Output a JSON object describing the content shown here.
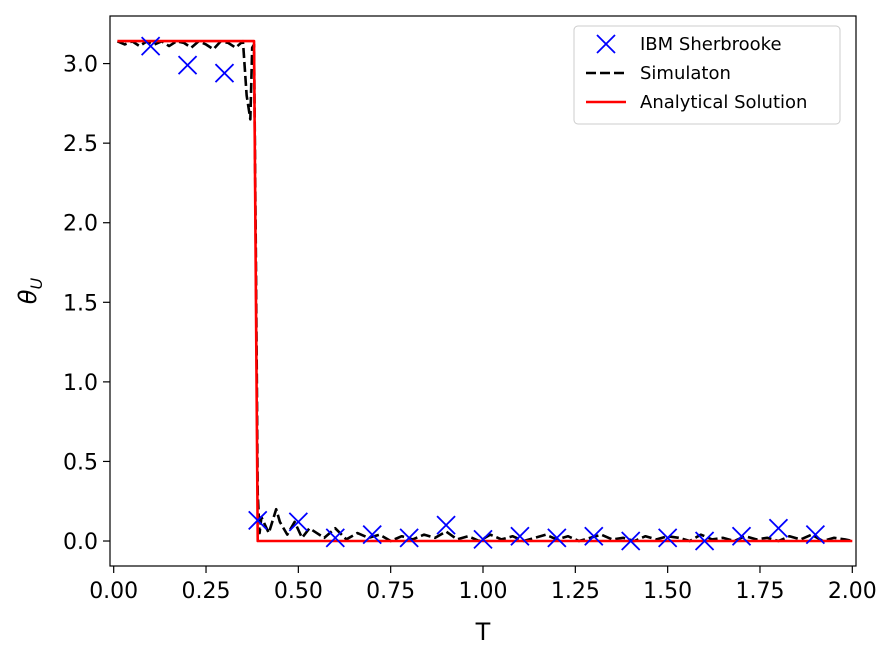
{
  "chart_data": {
    "type": "line",
    "xlabel": "T",
    "ylabel_base": "θ",
    "ylabel_sub": "U",
    "xlim": [
      -0.01,
      2.01
    ],
    "ylim": [
      -0.157,
      3.299
    ],
    "xticks": [
      0.0,
      0.25,
      0.5,
      0.75,
      1.0,
      1.25,
      1.5,
      1.75,
      2.0
    ],
    "xtick_labels": [
      "0.00",
      "0.25",
      "0.50",
      "0.75",
      "1.00",
      "1.25",
      "1.50",
      "1.75",
      "2.00"
    ],
    "yticks": [
      0.0,
      0.5,
      1.0,
      1.5,
      2.0,
      2.5,
      3.0
    ],
    "ytick_labels": [
      "0.0",
      "0.5",
      "1.0",
      "1.5",
      "2.0",
      "2.5",
      "3.0"
    ],
    "grid": false,
    "legend_position": "top-right",
    "series": [
      {
        "name": "IBM Sherbrooke",
        "kind": "scatter",
        "marker": "x",
        "color": "#0000ff",
        "x": [
          0.1,
          0.2,
          0.3,
          0.39,
          0.5,
          0.6,
          0.7,
          0.8,
          0.9,
          1.0,
          1.1,
          1.2,
          1.3,
          1.4,
          1.5,
          1.6,
          1.7,
          1.8,
          1.9
        ],
        "y": [
          3.11,
          2.99,
          2.94,
          0.13,
          0.12,
          0.02,
          0.04,
          0.02,
          0.1,
          0.01,
          0.03,
          0.02,
          0.03,
          0.0,
          0.02,
          0.0,
          0.03,
          0.08,
          0.04
        ]
      },
      {
        "name": "Simulaton",
        "kind": "line",
        "dash": "dashed",
        "color": "#000000",
        "x": [
          0.01,
          0.03,
          0.05,
          0.07,
          0.09,
          0.11,
          0.13,
          0.15,
          0.17,
          0.19,
          0.21,
          0.23,
          0.25,
          0.27,
          0.29,
          0.31,
          0.33,
          0.35,
          0.36,
          0.37,
          0.375,
          0.38,
          0.385,
          0.39,
          0.395,
          0.4,
          0.42,
          0.44,
          0.45,
          0.47,
          0.49,
          0.51,
          0.53,
          0.55,
          0.57,
          0.6,
          0.63,
          0.66,
          0.69,
          0.72,
          0.75,
          0.78,
          0.81,
          0.84,
          0.87,
          0.9,
          0.93,
          0.96,
          0.99,
          1.02,
          1.05,
          1.08,
          1.11,
          1.14,
          1.17,
          1.2,
          1.23,
          1.26,
          1.29,
          1.32,
          1.35,
          1.38,
          1.41,
          1.44,
          1.47,
          1.5,
          1.53,
          1.56,
          1.59,
          1.62,
          1.65,
          1.68,
          1.71,
          1.74,
          1.77,
          1.8,
          1.83,
          1.86,
          1.89,
          1.92,
          1.95,
          1.98,
          2.0
        ],
        "y": [
          3.14,
          3.12,
          3.14,
          3.11,
          3.14,
          3.12,
          3.14,
          3.11,
          3.14,
          3.13,
          3.1,
          3.14,
          3.12,
          3.09,
          3.14,
          3.13,
          3.1,
          3.14,
          2.8,
          2.65,
          3.1,
          3.12,
          1.8,
          0.3,
          0.05,
          0.15,
          0.05,
          0.2,
          0.12,
          0.04,
          0.12,
          0.02,
          0.08,
          0.05,
          0.02,
          0.08,
          0.01,
          0.05,
          0.02,
          0.04,
          0.0,
          0.03,
          0.01,
          0.04,
          0.02,
          0.06,
          0.01,
          0.03,
          0.0,
          0.04,
          0.01,
          0.03,
          0.0,
          0.02,
          0.04,
          0.01,
          0.03,
          0.0,
          0.02,
          0.04,
          0.01,
          0.02,
          0.0,
          0.03,
          0.01,
          0.03,
          0.02,
          0.0,
          0.04,
          0.01,
          0.02,
          0.0,
          0.03,
          0.01,
          0.02,
          0.0,
          0.03,
          0.01,
          0.04,
          0.0,
          0.02,
          0.01,
          0.0
        ]
      },
      {
        "name": "Analytical Solution",
        "kind": "line",
        "dash": "solid",
        "color": "#ff0000",
        "x": [
          0.01,
          0.38,
          0.39,
          2.0
        ],
        "y": [
          3.14159,
          3.14159,
          0.0,
          0.0
        ]
      }
    ]
  }
}
